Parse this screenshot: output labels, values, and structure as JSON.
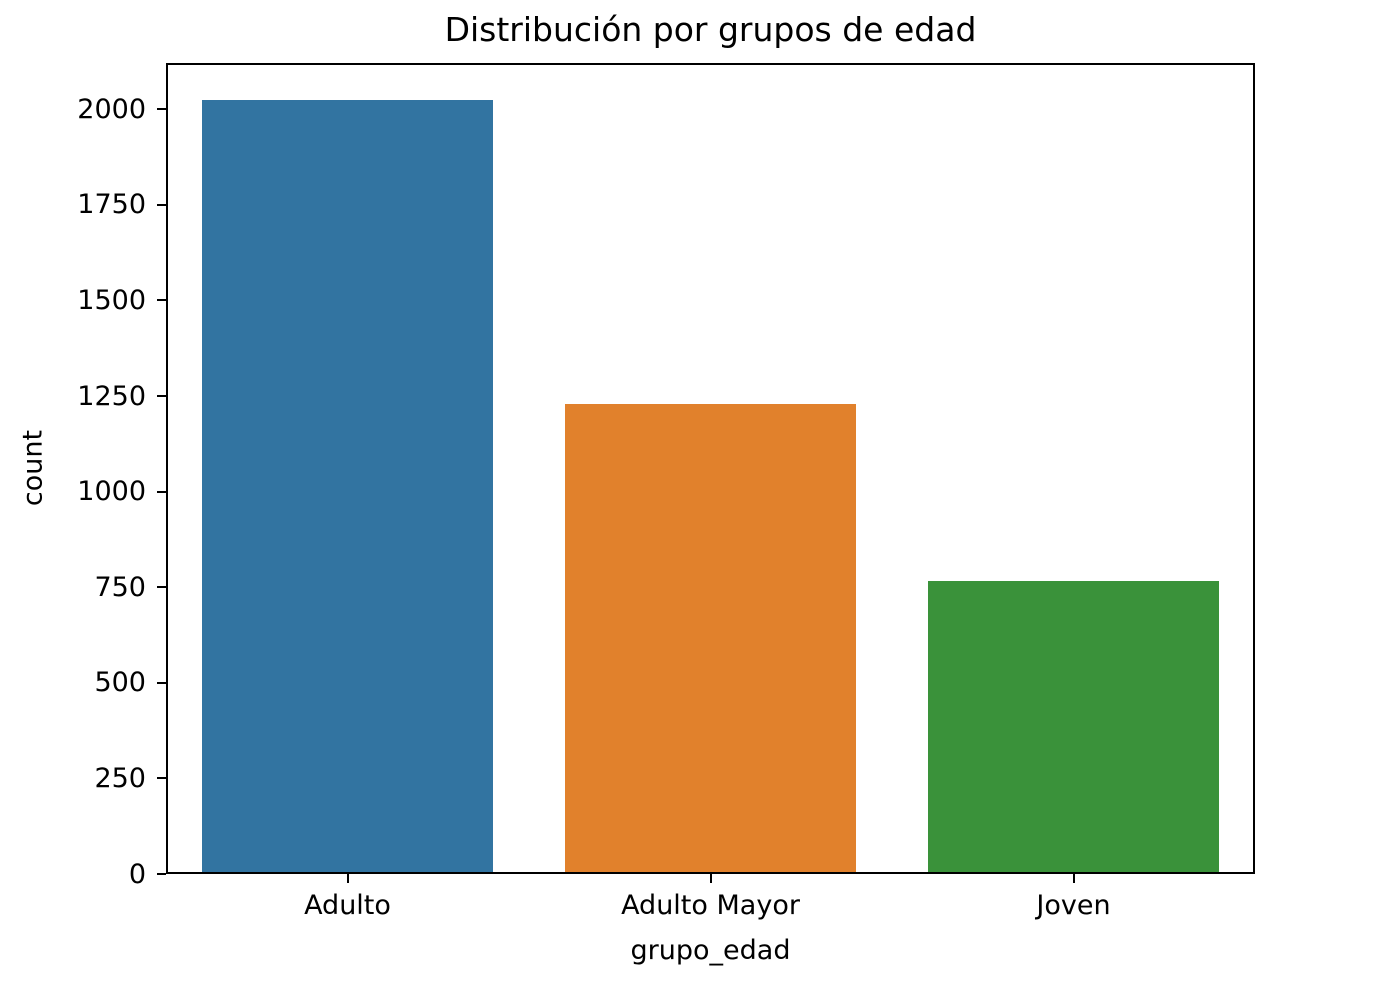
{
  "chart_data": {
    "type": "bar",
    "title": "Distribución por grupos de edad",
    "xlabel": "grupo_edad",
    "ylabel": "count",
    "categories": [
      "Adulto",
      "Adulto Mayor",
      "Joven"
    ],
    "values": [
      2020,
      1225,
      762
    ],
    "bar_colors": [
      "#3274a1",
      "#e1812c",
      "#3a923a"
    ],
    "ylim": [
      0,
      2121
    ],
    "yticks": [
      0,
      250,
      500,
      750,
      1000,
      1250,
      1500,
      1750,
      2000
    ],
    "bar_width_fraction": 0.8,
    "grid": false,
    "legend_position": "none",
    "background_color": "#ffffff",
    "axis_color": "#000000",
    "text_color": "#000000"
  }
}
